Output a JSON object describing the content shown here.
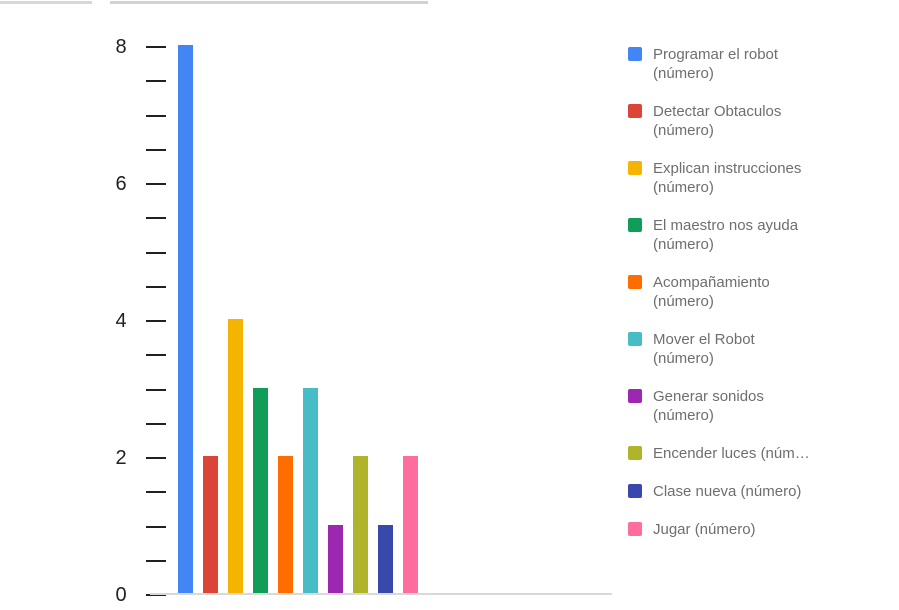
{
  "chart_data": {
    "type": "bar",
    "title": "",
    "categories": [
      "Programar el robot (número)",
      "Detectar Obtaculos (número)",
      "Explican instrucciones (número)",
      "El maestro nos ayuda (número)",
      "Acompañamiento (número)",
      "Mover el Robot (número)",
      "Generar sonidos (número)",
      "Encender luces (número)",
      "Clase nueva (número)",
      "Jugar (número)"
    ],
    "values": [
      8,
      2,
      4,
      3,
      2,
      3,
      1,
      2,
      1,
      2
    ],
    "colors": [
      "#4285F4",
      "#DB4437",
      "#F4B400",
      "#0F9D58",
      "#FF6D01",
      "#46BDC6",
      "#9C27B0",
      "#AFB42B",
      "#3949AB",
      "#FF6D9E"
    ],
    "xlabel": "",
    "ylabel": "",
    "ylim": [
      0,
      8
    ],
    "yticks": [
      {
        "value": 0,
        "label": "0"
      },
      {
        "value": 2,
        "label": "2"
      },
      {
        "value": 4,
        "label": "4"
      },
      {
        "value": 6,
        "label": "6"
      },
      {
        "value": 8,
        "label": "8"
      }
    ],
    "minor_tick_step": 0.5,
    "grid": false,
    "legend_position": "right"
  },
  "legend": {
    "items": [
      {
        "lines": [
          "Programar el robot",
          "(número)"
        ],
        "color": "#4285F4"
      },
      {
        "lines": [
          "Detectar Obtaculos",
          "(número)"
        ],
        "color": "#DB4437"
      },
      {
        "lines": [
          "Explican instrucciones",
          "(número)"
        ],
        "color": "#F4B400"
      },
      {
        "lines": [
          "El maestro nos ayuda",
          "(número)"
        ],
        "color": "#0F9D58"
      },
      {
        "lines": [
          "Acompañamiento",
          "(número)"
        ],
        "color": "#FF6D01"
      },
      {
        "lines": [
          "Mover el Robot",
          "(número)"
        ],
        "color": "#46BDC6"
      },
      {
        "lines": [
          "Generar sonidos",
          "(número)"
        ],
        "color": "#9C27B0"
      },
      {
        "lines": [
          "Encender luces (núm…"
        ],
        "color": "#AFB42B"
      },
      {
        "lines": [
          "Clase nueva (número)"
        ],
        "color": "#3949AB"
      },
      {
        "lines": [
          "Jugar (número)"
        ],
        "color": "#FF6D9E"
      }
    ]
  }
}
